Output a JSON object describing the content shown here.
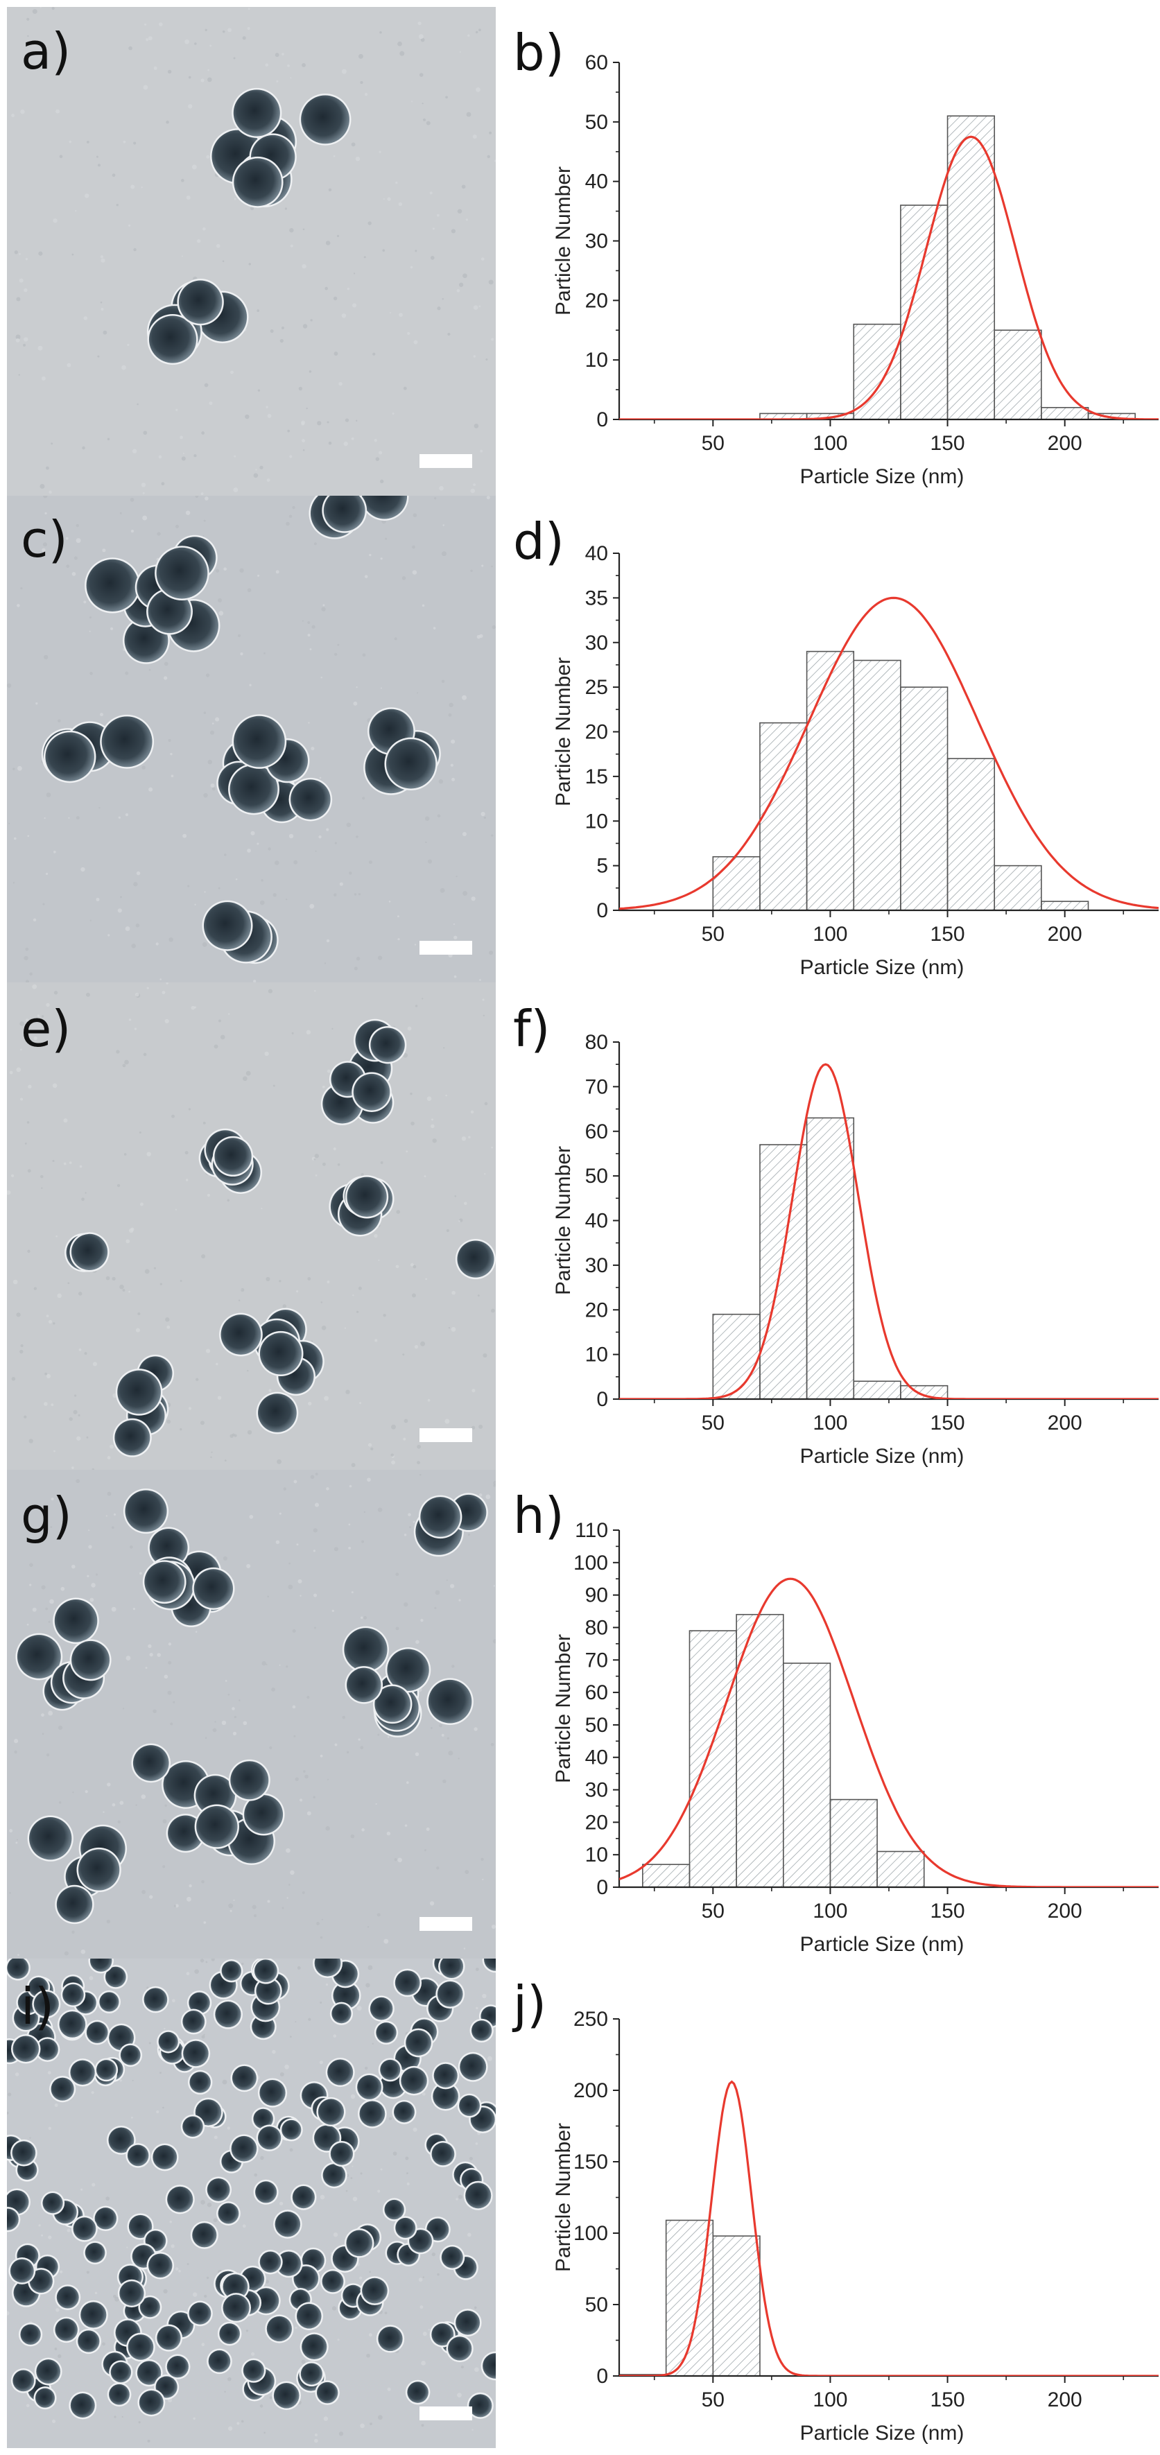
{
  "panels": [
    {
      "image_letter": "a)",
      "chart_letter": "b)"
    },
    {
      "image_letter": "c)",
      "chart_letter": "d)"
    },
    {
      "image_letter": "e)",
      "chart_letter": "f)"
    },
    {
      "image_letter": "g)",
      "chart_letter": "h)"
    },
    {
      "image_letter": "i)",
      "chart_letter": "j)"
    }
  ],
  "colors": {
    "fit_curve": "#e8392e",
    "bar_edge": "#555555",
    "hatch": "#9aa3a8",
    "micro_background": "#c9cdd1",
    "particle_dark": "#2e3a45",
    "scale_bar": "#ffffff"
  },
  "chart_data": [
    {
      "type": "bar",
      "xlabel": "Particle Size (nm)",
      "ylabel": "Particle Number",
      "xlim": [
        10,
        240
      ],
      "ylim": [
        0,
        60
      ],
      "xticks": [
        50,
        100,
        150,
        200
      ],
      "yticks": [
        0,
        10,
        20,
        30,
        40,
        50,
        60
      ],
      "bin_width": 20,
      "bins": [
        {
          "x": 60,
          "v": 0
        },
        {
          "x": 80,
          "v": 1
        },
        {
          "x": 100,
          "v": 1
        },
        {
          "x": 120,
          "v": 16
        },
        {
          "x": 140,
          "v": 36
        },
        {
          "x": 160,
          "v": 51
        },
        {
          "x": 180,
          "v": 15
        },
        {
          "x": 200,
          "v": 2
        },
        {
          "x": 220,
          "v": 1
        }
      ],
      "fit": {
        "type": "gaussian",
        "mean": 160,
        "sd": 19,
        "peak": 47.5
      }
    },
    {
      "type": "bar",
      "xlabel": "Particle Size (nm)",
      "ylabel": "Particle Number",
      "xlim": [
        10,
        240
      ],
      "ylim": [
        0,
        40
      ],
      "xticks": [
        50,
        100,
        150,
        200
      ],
      "yticks": [
        0,
        5,
        10,
        15,
        20,
        25,
        30,
        35,
        40
      ],
      "bin_width": 20,
      "bins": [
        {
          "x": 60,
          "v": 6
        },
        {
          "x": 80,
          "v": 21
        },
        {
          "x": 100,
          "v": 29
        },
        {
          "x": 120,
          "v": 28
        },
        {
          "x": 140,
          "v": 25
        },
        {
          "x": 160,
          "v": 17
        },
        {
          "x": 180,
          "v": 5
        },
        {
          "x": 200,
          "v": 1
        }
      ],
      "fit": {
        "type": "gaussian",
        "mean": 127,
        "sd": 36,
        "peak": 35
      }
    },
    {
      "type": "bar",
      "xlabel": "Particle Size (nm)",
      "ylabel": "Particle Number",
      "xlim": [
        10,
        240
      ],
      "ylim": [
        0,
        80
      ],
      "xticks": [
        50,
        100,
        150,
        200
      ],
      "yticks": [
        0,
        10,
        20,
        30,
        40,
        50,
        60,
        70,
        80
      ],
      "bin_width": 20,
      "bins": [
        {
          "x": 60,
          "v": 19
        },
        {
          "x": 80,
          "v": 57
        },
        {
          "x": 100,
          "v": 63
        },
        {
          "x": 120,
          "v": 4
        },
        {
          "x": 140,
          "v": 3
        }
      ],
      "fit": {
        "type": "gaussian",
        "mean": 98,
        "sd": 14,
        "peak": 75
      }
    },
    {
      "type": "bar",
      "xlabel": "Particle Size (nm)",
      "ylabel": "Particle Number",
      "xlim": [
        10,
        240
      ],
      "ylim": [
        0,
        110
      ],
      "xticks": [
        50,
        100,
        150,
        200
      ],
      "yticks": [
        0,
        10,
        20,
        30,
        40,
        50,
        60,
        70,
        80,
        90,
        100,
        110
      ],
      "bin_width": 20,
      "bins": [
        {
          "x": 30,
          "v": 7
        },
        {
          "x": 50,
          "v": 79
        },
        {
          "x": 70,
          "v": 84
        },
        {
          "x": 90,
          "v": 69
        },
        {
          "x": 110,
          "v": 27
        },
        {
          "x": 130,
          "v": 11
        }
      ],
      "fit": {
        "type": "gaussian",
        "mean": 83,
        "sd": 27,
        "peak": 95
      }
    },
    {
      "type": "bar",
      "xlabel": "Particle Size (nm)",
      "ylabel": "Particle Number",
      "xlim": [
        10,
        240
      ],
      "ylim": [
        0,
        250
      ],
      "xticks": [
        50,
        100,
        150,
        200
      ],
      "yticks": [
        0,
        50,
        100,
        150,
        200,
        250
      ],
      "bin_width": 20,
      "bins": [
        {
          "x": 20,
          "v": 1
        },
        {
          "x": 40,
          "v": 109
        },
        {
          "x": 60,
          "v": 98
        },
        {
          "x": 80,
          "v": 0
        }
      ],
      "fit": {
        "type": "gaussian",
        "mean": 58,
        "sd": 8.5,
        "peak": 206
      }
    }
  ]
}
